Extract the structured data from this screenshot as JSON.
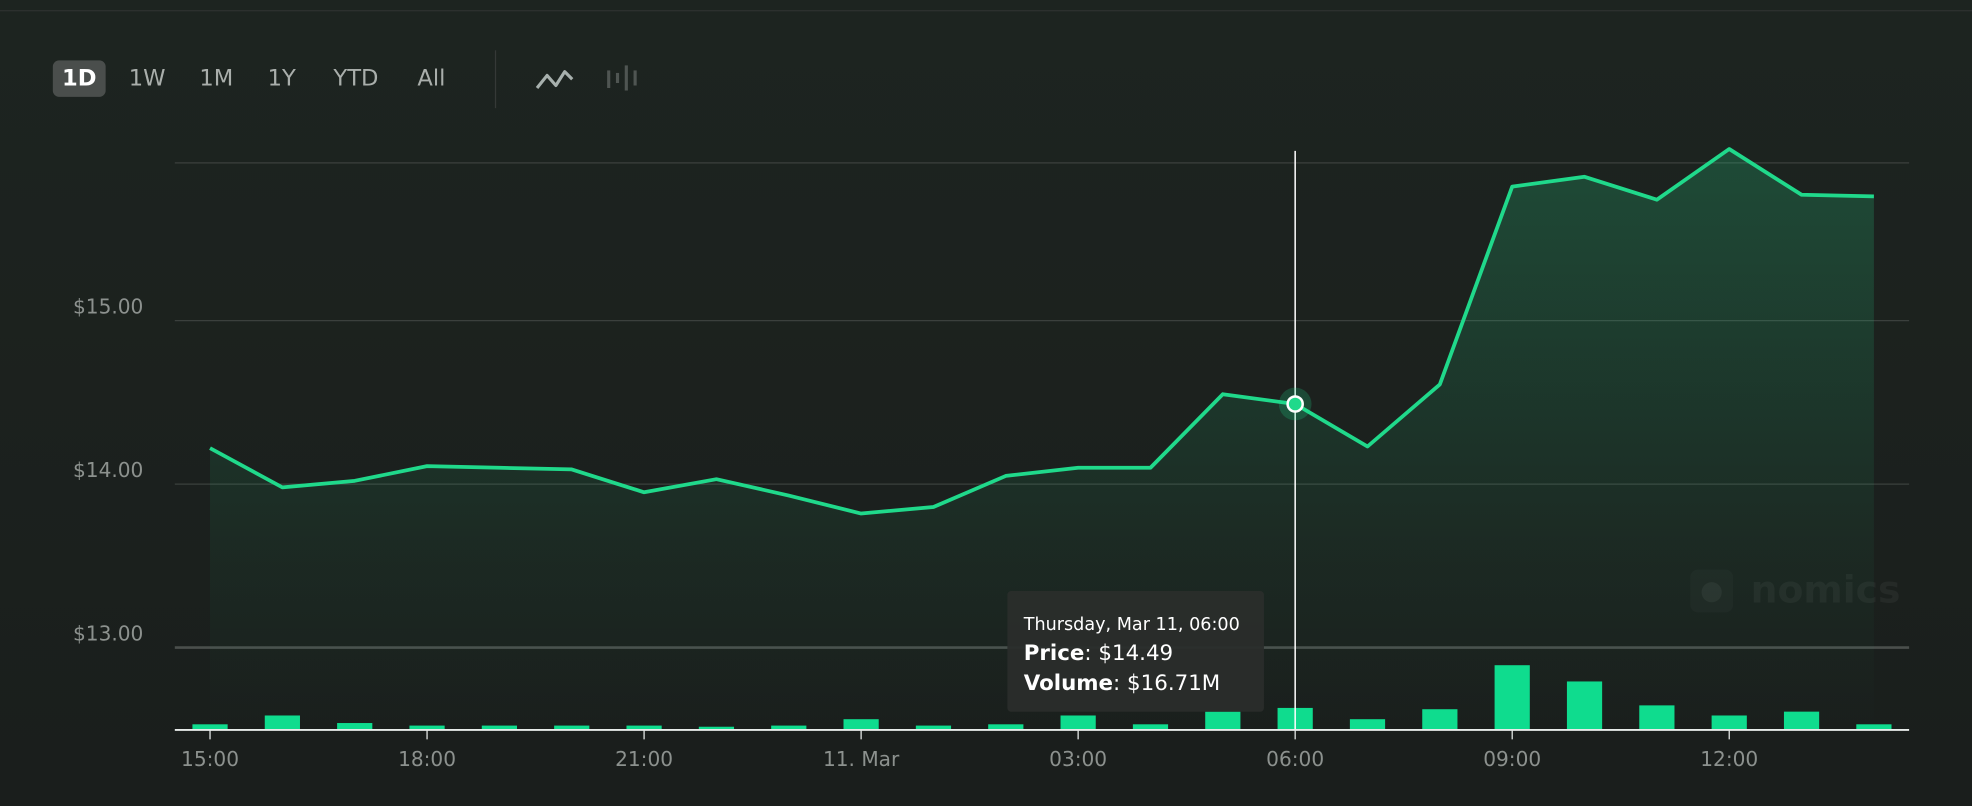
{
  "toolbar": {
    "ranges": [
      "1D",
      "1W",
      "1M",
      "1Y",
      "YTD",
      "All"
    ],
    "active": 0
  },
  "chart_data": {
    "type": "line",
    "categories": [
      "15:00",
      null,
      null,
      "18:00",
      null,
      null,
      "21:00",
      null,
      null,
      "11. Mar",
      null,
      null,
      "03:00",
      null,
      null,
      "06:00",
      null,
      null,
      "09:00",
      null,
      null,
      "12:00",
      null,
      null
    ],
    "series": [
      {
        "name": "Price",
        "color": "#20d98b",
        "values": [
          14.22,
          13.98,
          14.02,
          14.11,
          14.1,
          14.09,
          13.95,
          14.03,
          13.93,
          13.82,
          13.86,
          14.05,
          14.1,
          14.1,
          14.55,
          14.49,
          14.23,
          14.61,
          15.82,
          15.88,
          15.74,
          16.05,
          15.77,
          15.76
        ]
      },
      {
        "name": "Volume",
        "type": "bar",
        "axis": "y2",
        "color": "#0fdc8e",
        "values": [
          3.9,
          10.8,
          4.9,
          2.9,
          2.9,
          2.9,
          2.9,
          2.0,
          2.9,
          7.9,
          2.9,
          3.9,
          10.8,
          3.9,
          13.8,
          16.71,
          7.9,
          15.7,
          50.1,
          37.4,
          18.7,
          10.8,
          13.8,
          3.9
        ]
      }
    ],
    "ylim": [
      12.5,
      16.1
    ],
    "yticks": [
      {
        "value": 13,
        "label": "$13.00"
      },
      {
        "value": 14,
        "label": "$14.00"
      },
      {
        "value": 15,
        "label": "$15.00"
      }
    ],
    "y2lim": [
      0,
      460
    ],
    "grid": true,
    "tooltip": {
      "index": 15,
      "title": "Thursday, Mar 11, 06:00",
      "separator": ": ",
      "value_labels": [
        "$14.49",
        "$16.71M"
      ]
    },
    "watermark": "nomics"
  }
}
